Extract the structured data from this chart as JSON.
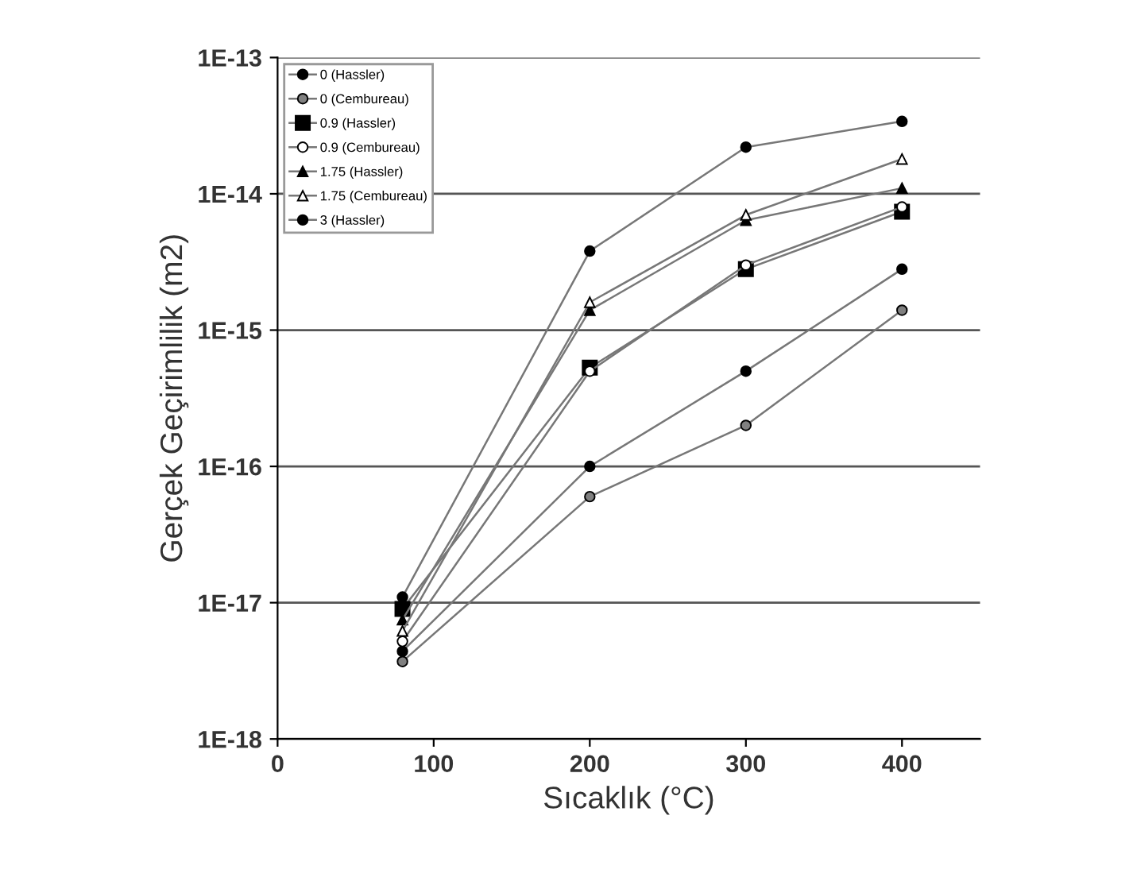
{
  "chart_data": {
    "type": "line",
    "xlabel": "Sıcaklık (°C)",
    "ylabel": "Gerçek Geçirimlilik (m2)",
    "x": [
      80,
      200,
      300,
      400
    ],
    "series": [
      {
        "name": "0 (Hassler)",
        "color": "#000000",
        "marker": "circle",
        "values": [
          4.4e-18,
          1e-16,
          5e-16,
          2.8e-15
        ]
      },
      {
        "name": "0 (Cembureau)",
        "color": "#808080",
        "marker": "circle",
        "values": [
          3.7e-18,
          6e-17,
          2e-16,
          1.4e-15
        ]
      },
      {
        "name": "0.9 (Hassler)",
        "color": "#000000",
        "marker": "square",
        "values": [
          9e-18,
          5.3e-16,
          2.8e-15,
          7.4e-15
        ]
      },
      {
        "name": "0.9 (Cembureau)",
        "color": "#ffffff",
        "marker": "circle",
        "values": [
          5.2e-18,
          5e-16,
          3e-15,
          8e-15
        ]
      },
      {
        "name": "1.75 (Hassler)",
        "color": "#000000",
        "marker": "triangle",
        "values": [
          7.5e-18,
          1.4e-15,
          6.4e-15,
          1.1e-14
        ]
      },
      {
        "name": "1.75 (Cembureau)",
        "color": "#ffffff",
        "marker": "triangle",
        "values": [
          6.2e-18,
          1.6e-15,
          7e-15,
          1.8e-14
        ]
      },
      {
        "name": "3 (Hassler)",
        "color": "#000000",
        "marker": "circle",
        "values": [
          1.1e-17,
          3.8e-15,
          2.2e-14,
          3.4e-14
        ]
      }
    ],
    "log": "y",
    "xlim": [
      0,
      450
    ],
    "xticks": [
      0,
      100,
      200,
      300,
      400
    ],
    "ylim": [
      1e-18,
      1e-13
    ],
    "yticks": [
      {
        "value": 1e-18,
        "label": "1E-18"
      },
      {
        "value": 1e-17,
        "label": "1E-17"
      },
      {
        "value": 1e-16,
        "label": "1E-16"
      },
      {
        "value": 1e-15,
        "label": "1E-15"
      },
      {
        "value": 1e-14,
        "label": "1E-14"
      },
      {
        "value": 1e-13,
        "label": "1E-13"
      }
    ],
    "grid": "y",
    "legend": "top left"
  }
}
